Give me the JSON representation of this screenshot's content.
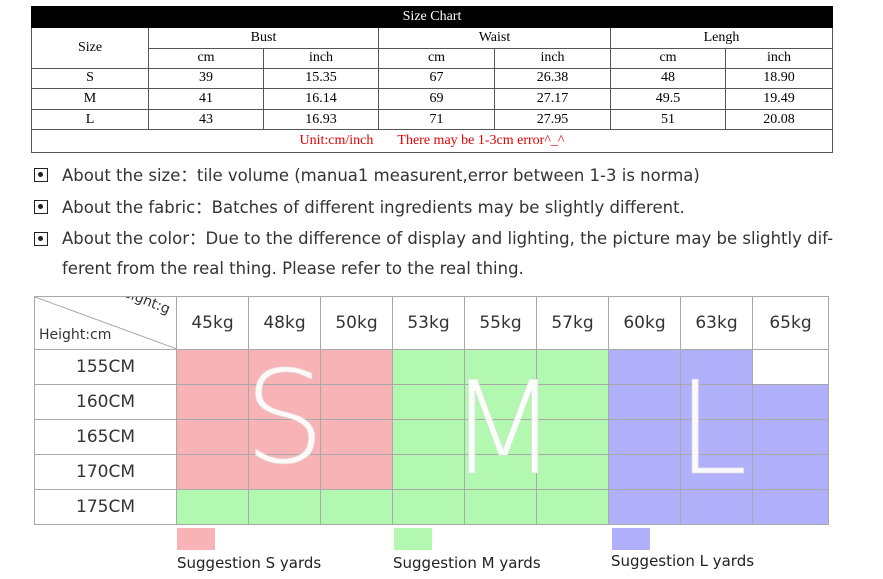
{
  "size_chart": {
    "title": "Size Chart",
    "size_header": "Size",
    "groups": [
      "Bust",
      "Waist",
      "Lengh"
    ],
    "units": [
      "cm",
      "inch",
      "cm",
      "inch",
      "cm",
      "inch"
    ],
    "rows": [
      {
        "size": "S",
        "values": [
          "39",
          "15.35",
          "67",
          "26.38",
          "48",
          "18.90"
        ]
      },
      {
        "size": "M",
        "values": [
          "41",
          "16.14",
          "69",
          "27.17",
          "49.5",
          "19.49"
        ]
      },
      {
        "size": "L",
        "values": [
          "43",
          "16.93",
          "71",
          "27.95",
          "51",
          "20.08"
        ]
      }
    ],
    "note_unit": "Unit:cm/inch",
    "note_error": "There may be 1-3cm error^_^"
  },
  "notes": [
    "About the size：tile volume (manua1 measurent,error between 1-3 is norma)",
    "About the fabric：Batches of different ingredients may be slightly different.",
    "About the color：Due to the difference of display and lighting, the picture may be slightly dif-ferent from the real thing. Please refer to the real thing."
  ],
  "grid": {
    "weight_label": "Weight:g",
    "height_label": "Height:cm",
    "weights": [
      "45kg",
      "48kg",
      "50kg",
      "53kg",
      "55kg",
      "57kg",
      "60kg",
      "63kg",
      "65kg"
    ],
    "heights": [
      "155CM",
      "160CM",
      "165CM",
      "170CM",
      "175CM"
    ],
    "cells": [
      [
        "S",
        "S",
        "S",
        "M",
        "M",
        "M",
        "L",
        "L",
        ""
      ],
      [
        "S",
        "S",
        "S",
        "M",
        "M",
        "M",
        "L",
        "L",
        "L"
      ],
      [
        "S",
        "S",
        "S",
        "M",
        "M",
        "M",
        "L",
        "L",
        "L"
      ],
      [
        "S",
        "S",
        "S",
        "M",
        "M",
        "M",
        "L",
        "L",
        "L"
      ],
      [
        "M",
        "M",
        "M",
        "M",
        "M",
        "M",
        "L",
        "L",
        "L"
      ]
    ],
    "colors": {
      "S": "#f8b3b6",
      "M": "#b3f8b0",
      "L": "#b1b1fb"
    },
    "big_letters": {
      "s": "S",
      "m": "M",
      "l": "L"
    }
  },
  "legend": [
    {
      "key": "S",
      "label": "Suggestion S yards"
    },
    {
      "key": "M",
      "label": "Suggestion M yards"
    },
    {
      "key": "L",
      "label": "Suggestion L yards"
    }
  ]
}
